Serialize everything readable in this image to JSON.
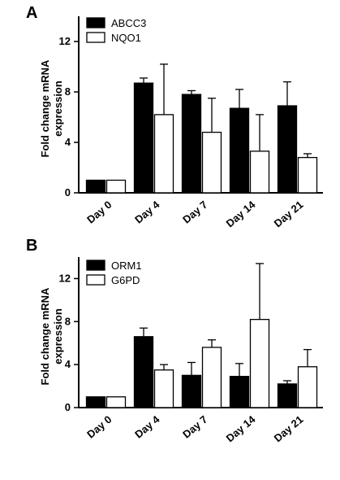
{
  "chart_data": [
    {
      "panel_label": "A",
      "type": "bar",
      "ylabel": "Fold change mRNA expression",
      "categories": [
        "Day 0",
        "Day 4",
        "Day 7",
        "Day 14",
        "Day 21"
      ],
      "ylim": [
        0,
        14
      ],
      "yticks": [
        "0",
        "4",
        "8",
        "12"
      ],
      "legend_position": "top-left",
      "series": [
        {
          "name": "ABCC3",
          "color": "#000000",
          "values": [
            1.0,
            8.7,
            7.8,
            6.7,
            6.9
          ],
          "error": [
            0,
            0.4,
            0.3,
            1.5,
            1.9
          ]
        },
        {
          "name": "NQO1",
          "color": "#ffffff",
          "values": [
            1.0,
            6.2,
            4.8,
            3.3,
            2.8
          ],
          "error": [
            0,
            4.0,
            2.7,
            2.9,
            0.3
          ]
        }
      ]
    },
    {
      "panel_label": "B",
      "type": "bar",
      "ylabel": "Fold change mRNA expression",
      "categories": [
        "Day 0",
        "Day 4",
        "Day 7",
        "Day 14",
        "Day 21"
      ],
      "ylim": [
        0,
        14
      ],
      "yticks": [
        "0",
        "4",
        "8",
        "12"
      ],
      "legend_position": "top-left",
      "series": [
        {
          "name": "ORM1",
          "color": "#000000",
          "values": [
            1.0,
            6.6,
            3.0,
            2.9,
            2.2
          ],
          "error": [
            0,
            0.8,
            1.2,
            1.2,
            0.3
          ]
        },
        {
          "name": "G6PD",
          "color": "#ffffff",
          "values": [
            1.0,
            3.5,
            5.6,
            8.2,
            3.8
          ],
          "error": [
            0,
            0.5,
            0.7,
            5.2,
            1.6
          ]
        }
      ]
    }
  ]
}
